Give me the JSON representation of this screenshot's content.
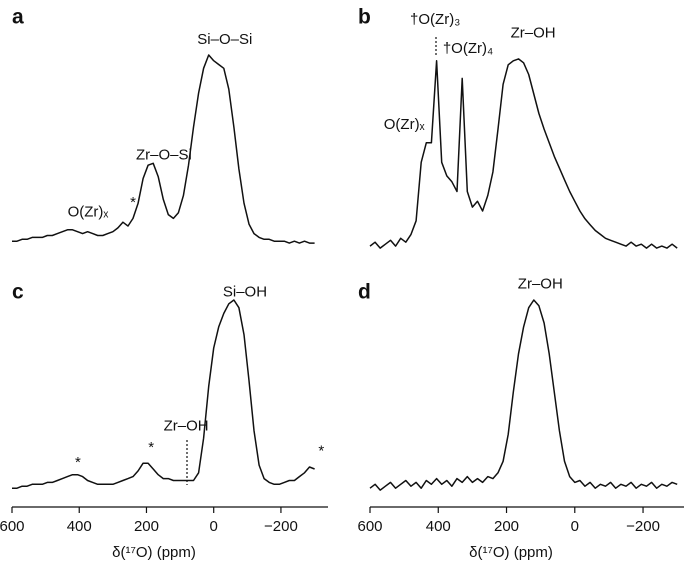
{
  "chart_data": [
    {
      "type": "line",
      "label": "a",
      "color": "#111111",
      "xlim": [
        600,
        -340
      ],
      "ylim": [
        0,
        1
      ],
      "x": [
        600,
        585,
        570,
        555,
        540,
        525,
        510,
        495,
        480,
        465,
        450,
        435,
        420,
        405,
        390,
        375,
        360,
        345,
        330,
        315,
        300,
        285,
        270,
        255,
        240,
        225,
        210,
        195,
        180,
        165,
        150,
        135,
        120,
        105,
        90,
        75,
        60,
        45,
        30,
        15,
        0,
        -15,
        -30,
        -45,
        -60,
        -75,
        -90,
        -105,
        -120,
        -135,
        -150,
        -165,
        -180,
        -195,
        -210,
        -225,
        -240,
        -255,
        -270,
        -285,
        -300
      ],
      "values": [
        0.02,
        0.02,
        0.03,
        0.03,
        0.04,
        0.04,
        0.04,
        0.05,
        0.05,
        0.06,
        0.07,
        0.08,
        0.08,
        0.07,
        0.06,
        0.07,
        0.06,
        0.05,
        0.05,
        0.06,
        0.07,
        0.09,
        0.12,
        0.1,
        0.14,
        0.22,
        0.35,
        0.42,
        0.43,
        0.36,
        0.24,
        0.16,
        0.14,
        0.17,
        0.26,
        0.42,
        0.62,
        0.8,
        0.93,
        1.0,
        0.97,
        0.95,
        0.93,
        0.82,
        0.62,
        0.4,
        0.22,
        0.11,
        0.06,
        0.04,
        0.03,
        0.03,
        0.02,
        0.02,
        0.02,
        0.01,
        0.02,
        0.01,
        0.02,
        0.01,
        0.01
      ],
      "annotations": [
        {
          "text": "O(Zr)ₓ",
          "x": 374,
          "y": 0.17
        },
        {
          "text": "*",
          "x": 240,
          "y": 0.22
        },
        {
          "text": "Zr–O–Si",
          "x": 148,
          "y": 0.47
        },
        {
          "text": "Si–O–Si",
          "x": -33,
          "y": 1.08
        }
      ]
    },
    {
      "type": "line",
      "label": "b",
      "color": "#111111",
      "xlim": [
        600,
        -320
      ],
      "ylim": [
        0,
        1
      ],
      "x": [
        600,
        585,
        570,
        555,
        540,
        525,
        510,
        495,
        480,
        465,
        450,
        435,
        420,
        405,
        390,
        375,
        360,
        345,
        330,
        315,
        300,
        285,
        270,
        255,
        240,
        225,
        210,
        195,
        180,
        165,
        150,
        135,
        120,
        105,
        90,
        75,
        60,
        45,
        30,
        15,
        0,
        -15,
        -30,
        -45,
        -60,
        -75,
        -90,
        -105,
        -120,
        -135,
        -150,
        -165,
        -180,
        -195,
        -210,
        -225,
        -240,
        -255,
        -270,
        -285,
        -300
      ],
      "values": [
        0.02,
        0.04,
        0.01,
        0.03,
        0.05,
        0.02,
        0.06,
        0.04,
        0.08,
        0.15,
        0.45,
        0.55,
        0.55,
        0.97,
        0.45,
        0.38,
        0.35,
        0.3,
        0.88,
        0.3,
        0.22,
        0.25,
        0.2,
        0.28,
        0.4,
        0.62,
        0.85,
        0.95,
        0.97,
        0.98,
        0.96,
        0.9,
        0.8,
        0.7,
        0.62,
        0.55,
        0.48,
        0.42,
        0.36,
        0.3,
        0.25,
        0.2,
        0.16,
        0.13,
        0.1,
        0.08,
        0.06,
        0.05,
        0.04,
        0.03,
        0.02,
        0.04,
        0.02,
        0.03,
        0.01,
        0.03,
        0.01,
        0.02,
        0.01,
        0.03,
        0.01
      ],
      "annotations": [
        {
          "text": "O(Zr)ₓ",
          "x": 500,
          "y": 0.64
        },
        {
          "text": "†O(Zr)₃",
          "x": 409,
          "y": 1.18
        },
        {
          "text": "†O(Zr)₄",
          "x": 313,
          "y": 1.03
        },
        {
          "text": "Zr–OH",
          "x": 122,
          "y": 1.11
        }
      ]
    },
    {
      "type": "line",
      "label": "c",
      "color": "#111111",
      "xlim": [
        600,
        -340
      ],
      "ylim": [
        0,
        1
      ],
      "xticks": [
        600,
        400,
        200,
        0,
        {
          "value": -200,
          "label": "−200"
        }
      ],
      "xlabel": "δ(¹⁷O) (ppm)",
      "x": [
        600,
        585,
        570,
        555,
        540,
        525,
        510,
        495,
        480,
        465,
        450,
        435,
        420,
        405,
        390,
        375,
        360,
        345,
        330,
        315,
        300,
        285,
        270,
        255,
        240,
        225,
        210,
        195,
        180,
        165,
        150,
        135,
        120,
        105,
        90,
        75,
        60,
        45,
        30,
        15,
        0,
        -15,
        -30,
        -45,
        -60,
        -75,
        -90,
        -105,
        -120,
        -135,
        -150,
        -165,
        -180,
        -195,
        -210,
        -225,
        -240,
        -255,
        -270,
        -285,
        -300
      ],
      "values": [
        0.02,
        0.02,
        0.03,
        0.03,
        0.04,
        0.04,
        0.04,
        0.05,
        0.05,
        0.06,
        0.07,
        0.08,
        0.09,
        0.09,
        0.08,
        0.06,
        0.05,
        0.04,
        0.04,
        0.04,
        0.04,
        0.05,
        0.06,
        0.07,
        0.08,
        0.11,
        0.15,
        0.15,
        0.12,
        0.09,
        0.07,
        0.07,
        0.06,
        0.06,
        0.06,
        0.06,
        0.06,
        0.1,
        0.28,
        0.55,
        0.75,
        0.86,
        0.93,
        0.98,
        1.0,
        0.96,
        0.82,
        0.58,
        0.32,
        0.14,
        0.07,
        0.05,
        0.04,
        0.04,
        0.05,
        0.06,
        0.06,
        0.08,
        0.1,
        0.13,
        0.12
      ],
      "annotations": [
        {
          "text": "*",
          "x": 404,
          "y": 0.15
        },
        {
          "text": "*",
          "x": 186,
          "y": 0.23
        },
        {
          "text": "Zr–OH",
          "x": 82,
          "y": 0.34
        },
        {
          "text": "Si–OH",
          "x": -93,
          "y": 1.04
        },
        {
          "text": "*",
          "x": -320,
          "y": 0.21
        }
      ]
    },
    {
      "type": "line",
      "label": "d",
      "color": "#111111",
      "xlim": [
        600,
        -320
      ],
      "ylim": [
        0,
        1
      ],
      "xticks": [
        600,
        400,
        200,
        0,
        {
          "value": -200,
          "label": "−200"
        }
      ],
      "xlabel": "δ(¹⁷O) (ppm)",
      "x": [
        600,
        585,
        570,
        555,
        540,
        525,
        510,
        495,
        480,
        465,
        450,
        435,
        420,
        405,
        390,
        375,
        360,
        345,
        330,
        315,
        300,
        285,
        270,
        255,
        240,
        225,
        210,
        195,
        180,
        165,
        150,
        135,
        120,
        105,
        90,
        75,
        60,
        45,
        30,
        15,
        0,
        -15,
        -30,
        -45,
        -60,
        -75,
        -90,
        -105,
        -120,
        -135,
        -150,
        -165,
        -180,
        -195,
        -210,
        -225,
        -240,
        -255,
        -270,
        -285,
        -300
      ],
      "values": [
        0.02,
        0.04,
        0.01,
        0.03,
        0.05,
        0.02,
        0.04,
        0.06,
        0.03,
        0.05,
        0.02,
        0.06,
        0.04,
        0.07,
        0.04,
        0.06,
        0.03,
        0.07,
        0.05,
        0.08,
        0.05,
        0.07,
        0.05,
        0.08,
        0.07,
        0.1,
        0.16,
        0.3,
        0.52,
        0.72,
        0.86,
        0.96,
        1.0,
        0.97,
        0.88,
        0.72,
        0.52,
        0.32,
        0.16,
        0.08,
        0.05,
        0.06,
        0.03,
        0.05,
        0.02,
        0.04,
        0.03,
        0.05,
        0.02,
        0.04,
        0.03,
        0.05,
        0.02,
        0.04,
        0.03,
        0.05,
        0.02,
        0.04,
        0.03,
        0.05,
        0.04
      ],
      "annotations": [
        {
          "text": "Zr–OH",
          "x": 101,
          "y": 1.08
        }
      ]
    }
  ]
}
